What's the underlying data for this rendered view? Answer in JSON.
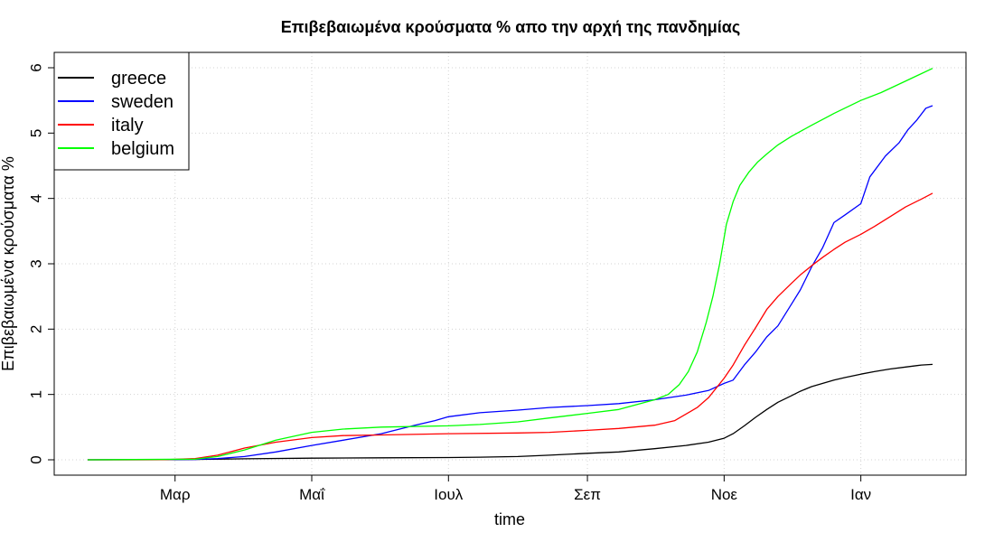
{
  "chart_data": {
    "type": "line",
    "title": "Επιβεβαιωμένα κρούσματα % απο την αρχή της πανδημίας",
    "xlabel": "time",
    "ylabel": "Επιβεβαιωμένα κρούσματα %",
    "x_start": "2020-01-22",
    "x_end": "2021-02-02",
    "xticks": [
      {
        "label": "Μαρ",
        "date": "2020-03-01"
      },
      {
        "label": "Μαΐ",
        "date": "2020-05-01"
      },
      {
        "label": "Ιουλ",
        "date": "2020-07-01"
      },
      {
        "label": "Σεπ",
        "date": "2020-09-01"
      },
      {
        "label": "Νοε",
        "date": "2020-11-01"
      },
      {
        "label": "Ιαν",
        "date": "2021-01-01"
      }
    ],
    "ylim": [
      0,
      6
    ],
    "yticks": [
      0,
      1,
      2,
      3,
      4,
      5,
      6
    ],
    "grid": true,
    "legend_position": "top-left",
    "series": [
      {
        "name": "greece",
        "color": "#000000",
        "points": [
          [
            "2020-01-22",
            0
          ],
          [
            "2020-03-01",
            0.002
          ],
          [
            "2020-04-01",
            0.015
          ],
          [
            "2020-05-01",
            0.025
          ],
          [
            "2020-06-01",
            0.03
          ],
          [
            "2020-07-01",
            0.035
          ],
          [
            "2020-07-15",
            0.04
          ],
          [
            "2020-08-01",
            0.05
          ],
          [
            "2020-08-15",
            0.07
          ],
          [
            "2020-09-01",
            0.1
          ],
          [
            "2020-09-15",
            0.12
          ],
          [
            "2020-10-01",
            0.17
          ],
          [
            "2020-10-15",
            0.22
          ],
          [
            "2020-10-25",
            0.27
          ],
          [
            "2020-11-01",
            0.33
          ],
          [
            "2020-11-05",
            0.4
          ],
          [
            "2020-11-10",
            0.52
          ],
          [
            "2020-11-15",
            0.65
          ],
          [
            "2020-11-20",
            0.77
          ],
          [
            "2020-11-25",
            0.88
          ],
          [
            "2020-12-01",
            0.98
          ],
          [
            "2020-12-05",
            1.05
          ],
          [
            "2020-12-10",
            1.12
          ],
          [
            "2020-12-15",
            1.17
          ],
          [
            "2020-12-20",
            1.22
          ],
          [
            "2020-12-25",
            1.26
          ],
          [
            "2021-01-01",
            1.31
          ],
          [
            "2021-01-07",
            1.35
          ],
          [
            "2021-01-14",
            1.39
          ],
          [
            "2021-01-21",
            1.42
          ],
          [
            "2021-01-28",
            1.45
          ],
          [
            "2021-02-02",
            1.46
          ]
        ]
      },
      {
        "name": "sweden",
        "color": "#0000ff",
        "points": [
          [
            "2020-01-22",
            0
          ],
          [
            "2020-03-10",
            0.005
          ],
          [
            "2020-03-20",
            0.02
          ],
          [
            "2020-04-01",
            0.05
          ],
          [
            "2020-04-15",
            0.12
          ],
          [
            "2020-05-01",
            0.22
          ],
          [
            "2020-05-15",
            0.3
          ],
          [
            "2020-06-01",
            0.4
          ],
          [
            "2020-06-15",
            0.52
          ],
          [
            "2020-06-25",
            0.6
          ],
          [
            "2020-07-01",
            0.66
          ],
          [
            "2020-07-15",
            0.72
          ],
          [
            "2020-08-01",
            0.76
          ],
          [
            "2020-08-15",
            0.8
          ],
          [
            "2020-09-01",
            0.83
          ],
          [
            "2020-09-15",
            0.86
          ],
          [
            "2020-10-01",
            0.92
          ],
          [
            "2020-10-15",
            0.99
          ],
          [
            "2020-10-25",
            1.06
          ],
          [
            "2020-11-01",
            1.17
          ],
          [
            "2020-11-05",
            1.22
          ],
          [
            "2020-11-10",
            1.45
          ],
          [
            "2020-11-15",
            1.65
          ],
          [
            "2020-11-20",
            1.88
          ],
          [
            "2020-11-25",
            2.05
          ],
          [
            "2020-12-01",
            2.38
          ],
          [
            "2020-12-05",
            2.6
          ],
          [
            "2020-12-10",
            2.95
          ],
          [
            "2020-12-15",
            3.25
          ],
          [
            "2020-12-20",
            3.63
          ],
          [
            "2020-12-25",
            3.75
          ],
          [
            "2021-01-01",
            3.92
          ],
          [
            "2021-01-05",
            4.33
          ],
          [
            "2021-01-12",
            4.65
          ],
          [
            "2021-01-18",
            4.85
          ],
          [
            "2021-01-22",
            5.05
          ],
          [
            "2021-01-26",
            5.2
          ],
          [
            "2021-01-30",
            5.38
          ],
          [
            "2021-02-02",
            5.42
          ]
        ]
      },
      {
        "name": "italy",
        "color": "#ff0000",
        "points": [
          [
            "2020-01-22",
            0
          ],
          [
            "2020-02-25",
            0.002
          ],
          [
            "2020-03-10",
            0.02
          ],
          [
            "2020-03-20",
            0.07
          ],
          [
            "2020-04-01",
            0.18
          ],
          [
            "2020-04-15",
            0.27
          ],
          [
            "2020-05-01",
            0.34
          ],
          [
            "2020-05-15",
            0.37
          ],
          [
            "2020-06-01",
            0.38
          ],
          [
            "2020-07-01",
            0.4
          ],
          [
            "2020-08-01",
            0.41
          ],
          [
            "2020-08-15",
            0.42
          ],
          [
            "2020-09-01",
            0.45
          ],
          [
            "2020-09-15",
            0.48
          ],
          [
            "2020-10-01",
            0.53
          ],
          [
            "2020-10-10",
            0.6
          ],
          [
            "2020-10-20",
            0.8
          ],
          [
            "2020-10-25",
            0.95
          ],
          [
            "2020-11-01",
            1.25
          ],
          [
            "2020-11-05",
            1.45
          ],
          [
            "2020-11-10",
            1.75
          ],
          [
            "2020-11-15",
            2.02
          ],
          [
            "2020-11-20",
            2.3
          ],
          [
            "2020-11-25",
            2.5
          ],
          [
            "2020-12-01",
            2.7
          ],
          [
            "2020-12-05",
            2.83
          ],
          [
            "2020-12-10",
            2.97
          ],
          [
            "2020-12-15",
            3.1
          ],
          [
            "2020-12-20",
            3.22
          ],
          [
            "2020-12-25",
            3.33
          ],
          [
            "2021-01-01",
            3.45
          ],
          [
            "2021-01-07",
            3.57
          ],
          [
            "2021-01-14",
            3.72
          ],
          [
            "2021-01-21",
            3.87
          ],
          [
            "2021-01-28",
            3.99
          ],
          [
            "2021-02-02",
            4.08
          ]
        ]
      },
      {
        "name": "belgium",
        "color": "#00ff00",
        "points": [
          [
            "2020-01-22",
            0
          ],
          [
            "2020-03-10",
            0.01
          ],
          [
            "2020-03-20",
            0.05
          ],
          [
            "2020-04-01",
            0.15
          ],
          [
            "2020-04-15",
            0.3
          ],
          [
            "2020-05-01",
            0.42
          ],
          [
            "2020-05-15",
            0.47
          ],
          [
            "2020-06-01",
            0.5
          ],
          [
            "2020-07-01",
            0.52
          ],
          [
            "2020-07-15",
            0.54
          ],
          [
            "2020-08-01",
            0.58
          ],
          [
            "2020-08-15",
            0.64
          ],
          [
            "2020-09-01",
            0.71
          ],
          [
            "2020-09-15",
            0.77
          ],
          [
            "2020-10-01",
            0.92
          ],
          [
            "2020-10-07",
            1.0
          ],
          [
            "2020-10-12",
            1.15
          ],
          [
            "2020-10-16",
            1.35
          ],
          [
            "2020-10-20",
            1.65
          ],
          [
            "2020-10-24",
            2.1
          ],
          [
            "2020-10-27",
            2.5
          ],
          [
            "2020-10-30",
            3.0
          ],
          [
            "2020-11-02",
            3.6
          ],
          [
            "2020-11-05",
            3.95
          ],
          [
            "2020-11-08",
            4.2
          ],
          [
            "2020-11-12",
            4.4
          ],
          [
            "2020-11-16",
            4.56
          ],
          [
            "2020-11-20",
            4.68
          ],
          [
            "2020-11-25",
            4.82
          ],
          [
            "2020-12-01",
            4.95
          ],
          [
            "2020-12-10",
            5.12
          ],
          [
            "2020-12-20",
            5.3
          ],
          [
            "2021-01-01",
            5.5
          ],
          [
            "2021-01-10",
            5.62
          ],
          [
            "2021-01-20",
            5.78
          ],
          [
            "2021-02-02",
            5.99
          ]
        ]
      }
    ]
  }
}
